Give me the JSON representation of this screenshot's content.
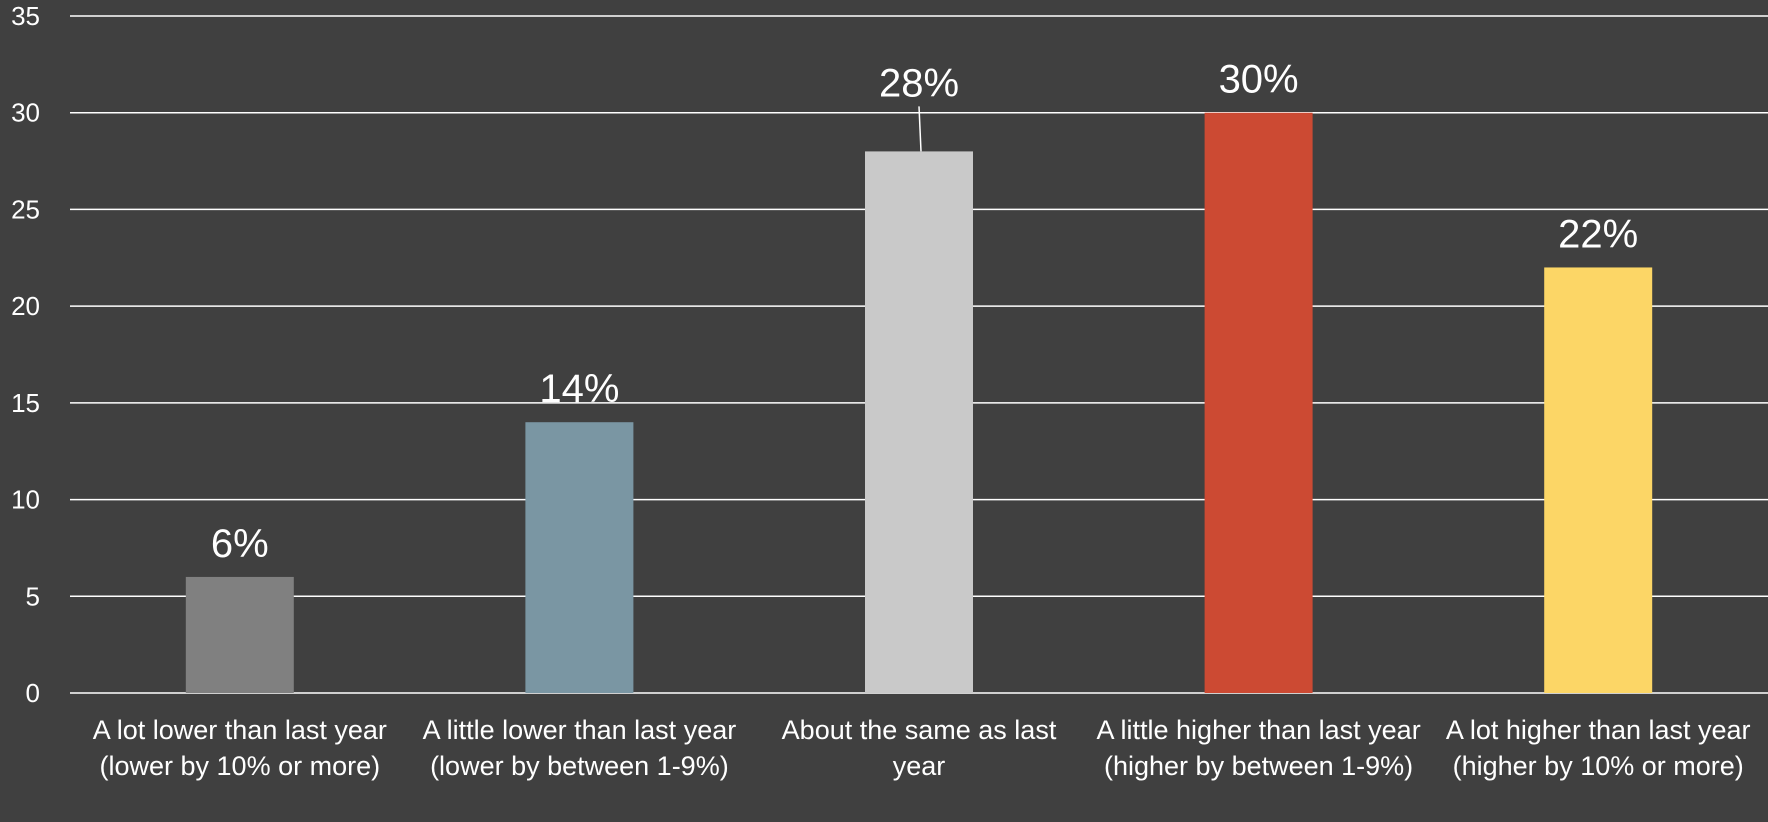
{
  "chart_data": {
    "type": "bar",
    "categories": [
      "A lot lower than last year (lower by 10% or more)",
      "A little lower than last year (lower by between 1-9%)",
      "About the same as last year",
      "A little higher than last year (higher by between 1-9%)",
      "A lot higher than last year (higher by 10% or more)"
    ],
    "values": [
      6,
      14,
      28,
      30,
      22
    ],
    "data_labels": [
      "6%",
      "14%",
      "28%",
      "30%",
      "22%"
    ],
    "colors": [
      "#808080",
      "#7a96a3",
      "#c9c9c9",
      "#cc4a33",
      "#fcd666"
    ],
    "ylim": [
      0,
      35
    ],
    "yticks": [
      "0",
      "5",
      "10",
      "15",
      "20",
      "25",
      "30",
      "35"
    ],
    "grid": true,
    "title": "",
    "xlabel": "",
    "ylabel": ""
  }
}
